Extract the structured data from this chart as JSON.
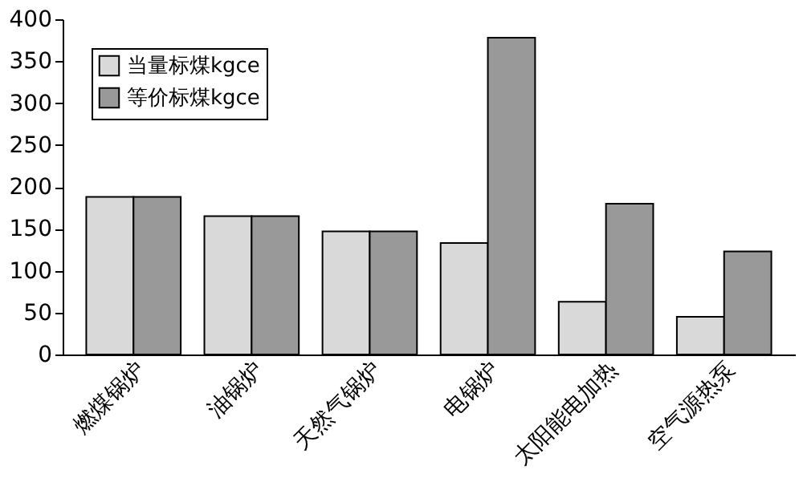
{
  "chart_data": {
    "type": "bar",
    "categories": [
      "燃煤锅炉",
      "油锅炉",
      "天然气锅炉",
      "电锅炉",
      "太阳能电加热",
      "空气源热泵"
    ],
    "series": [
      {
        "name": "当量标煤kgce",
        "color": "#d9d9d9",
        "values": [
          188,
          165,
          147,
          133,
          63,
          45
        ]
      },
      {
        "name": "等价标煤kgce",
        "color": "#999999",
        "values": [
          188,
          165,
          147,
          378,
          180,
          123
        ]
      }
    ],
    "ylim": [
      0,
      400
    ],
    "yticks": [
      0,
      50,
      100,
      150,
      200,
      250,
      300,
      350,
      400
    ],
    "grid": false,
    "legend": "top left"
  }
}
